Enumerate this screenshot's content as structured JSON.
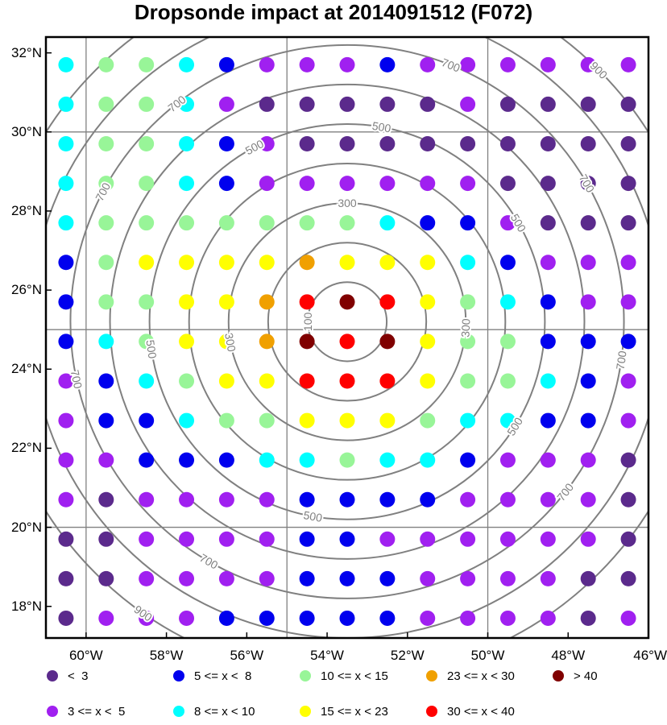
{
  "title": "Dropsonde impact at 2014091512 (F072)",
  "map": {
    "lon_range": [
      -61,
      -46
    ],
    "lat_range": [
      17.2,
      32.4
    ],
    "lat_ticks": [
      {
        "value": 32,
        "label": "32°N"
      },
      {
        "value": 30,
        "label": "30°N"
      },
      {
        "value": 28,
        "label": "28°N"
      },
      {
        "value": 26,
        "label": "26°N"
      },
      {
        "value": 24,
        "label": "24°N"
      },
      {
        "value": 22,
        "label": "22°N"
      },
      {
        "value": 20,
        "label": "20°N"
      },
      {
        "value": 18,
        "label": "18°N"
      }
    ],
    "lon_ticks": [
      {
        "value": -60,
        "label": "60°W"
      },
      {
        "value": -58,
        "label": "58°W"
      },
      {
        "value": -56,
        "label": "56°W"
      },
      {
        "value": -54,
        "label": "54°W"
      },
      {
        "value": -52,
        "label": "52°W"
      },
      {
        "value": -50,
        "label": "50°W"
      },
      {
        "value": -48,
        "label": "48°W"
      },
      {
        "value": -46,
        "label": "46°W"
      }
    ],
    "graticule": {
      "lon": [
        -60,
        -55,
        -50
      ],
      "lat": [
        20,
        25,
        30
      ]
    },
    "range_rings": {
      "center": [
        -53.5,
        25.2
      ],
      "radii_deg": [
        1,
        2,
        3,
        4,
        5,
        6,
        7,
        8,
        9
      ],
      "labels": [
        {
          "text": "100",
          "ring": 1,
          "angle": 180
        },
        {
          "text": "300",
          "ring": 3,
          "angle": 90
        },
        {
          "text": "300",
          "ring": 3,
          "angle": -3
        },
        {
          "text": "300",
          "ring": 3,
          "angle": 190
        },
        {
          "text": "500",
          "ring": 5,
          "angle": 80
        },
        {
          "text": "500",
          "ring": 5,
          "angle": 118
        },
        {
          "text": "500",
          "ring": 5,
          "angle": 30
        },
        {
          "text": "500",
          "ring": 5,
          "angle": -32
        },
        {
          "text": "500",
          "ring": 5,
          "angle": 188
        },
        {
          "text": "500",
          "ring": 5,
          "angle": -100
        },
        {
          "text": "700",
          "ring": 7,
          "angle": 128
        },
        {
          "text": "700",
          "ring": 7,
          "angle": 68
        },
        {
          "text": "700",
          "ring": 7,
          "angle": 30
        },
        {
          "text": "700",
          "ring": 7,
          "angle": -8
        },
        {
          "text": "700",
          "ring": 7,
          "angle": -38
        },
        {
          "text": "700",
          "ring": 7,
          "angle": 152
        },
        {
          "text": "700",
          "ring": 7,
          "angle": 192
        },
        {
          "text": "700",
          "ring": 7,
          "angle": -120
        },
        {
          "text": "900",
          "ring": 9,
          "angle": 163
        },
        {
          "text": "900",
          "ring": 9,
          "angle": 45
        },
        {
          "text": "900",
          "ring": 9,
          "angle": -27
        },
        {
          "text": "900",
          "ring": 9,
          "angle": -125
        }
      ]
    }
  },
  "grid": {
    "lons": [
      -60.5,
      -59.5,
      -58.5,
      -57.5,
      -56.5,
      -55.5,
      -54.5,
      -53.5,
      -52.5,
      -51.5,
      -50.5,
      -49.5,
      -48.5,
      -47.5,
      -46.5
    ],
    "lats": [
      31.7,
      30.7,
      29.7,
      28.7,
      27.7,
      26.7,
      25.7,
      24.7,
      23.7,
      22.7,
      21.7,
      20.7,
      19.7,
      18.7,
      17.7
    ],
    "categories": [
      "8.9,13,13,8.9,6.5,4,4,4,6.5,4,4,4,4,4,4",
      "8.9,13,13,8.9,4,2,2,2,2,2,4,2,2,2,2",
      "8.9,13,13,8.9,6.5,4,2,2,2,2,2,2,2,2,2",
      "8.9,13,13,8.9,6.5,4,4,4,4,4,4,2,2,2,2",
      "8.9,13,13,13,13,13,13,13,8.9,6.5,6.5,4,2,2,2",
      "6.5,13,19,19,19,19,26,19,19,19,8.9,6.5,4,4,4",
      "6.5,13,13,19,19,26,35,45,35,19,13,8.9,6.5,4,4",
      "6.5,8.9,13,19,19,26,45,35,45,19,13,13,6.5,6.5,6.5",
      "4,6.5,8.9,13,19,19,35,35,35,19,13,13,8.9,6.5,4",
      "4,6.5,6.5,8.9,13,13,19,19,19,13,8.9,8.9,6.5,6.5,4",
      "4,4,6.5,6.5,6.5,8.9,8.9,13,8.9,8.9,6.5,4,4,4,2",
      "4,2,4,4,4,4,6.5,6.5,6.5,6.5,4,4,4,4,2",
      "2,2,4,4,4,4,6.5,6.5,4,4,4,4,4,4,2",
      "2,2,4,4,4,4,6.5,6.5,6.5,4,4,4,4,2,2",
      "2,4,4,4,6.5,6.5,6.5,6.5,6.5,4,4,4,4,2,4"
    ]
  },
  "legend": {
    "items": [
      {
        "label": "<  3",
        "color": "#5b2a8c",
        "max": 3
      },
      {
        "label": "3 <= x <  5",
        "color": "#a020f0",
        "max": 5
      },
      {
        "label": "5 <= x <  8",
        "color": "#0000ee",
        "max": 8
      },
      {
        "label": "8 <= x < 10",
        "color": "#00ffff",
        "max": 10
      },
      {
        "label": "10 <= x < 15",
        "color": "#98f598",
        "max": 15
      },
      {
        "label": "15 <= x < 23",
        "color": "#ffff00",
        "max": 23
      },
      {
        "label": "23 <= x < 30",
        "color": "#f0a000",
        "max": 30
      },
      {
        "label": "30 <= x < 40",
        "color": "#ff0000",
        "max": 40
      },
      {
        "label": "> 40",
        "color": "#800000",
        "max": 1000
      }
    ]
  }
}
